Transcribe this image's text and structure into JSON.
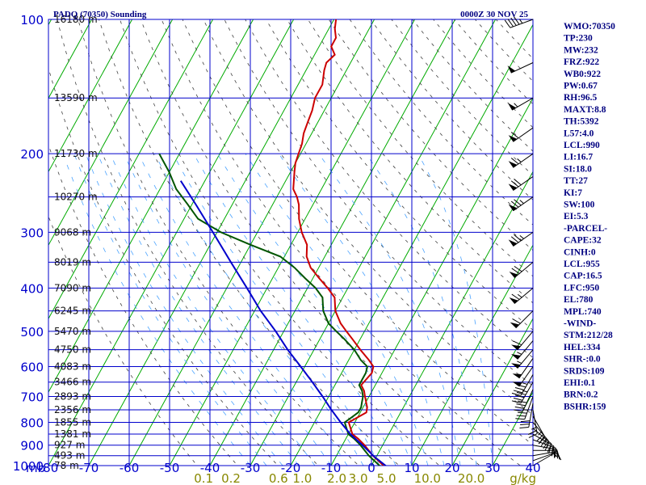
{
  "header": {
    "title": "PADQ (70350) Sounding",
    "time": "0000Z 30 NOV 25"
  },
  "colors": {
    "background": "#ffffff",
    "grid": "#0000cc",
    "isotherm": "#00aa00",
    "dry_adiabat": "#404040",
    "moist_adiabat": "#4aa3ff",
    "mixing_ratio_label": "#888800",
    "temperature": "#cc0000",
    "dewpoint": "#005500",
    "parcel": "#0000cc",
    "wind_barb": "#000000",
    "text": "#000080"
  },
  "chart_data": {
    "type": "line",
    "subtype": "skew-T log-P sounding",
    "title": "PADQ (70350) Sounding",
    "valid_time": "0000Z 30 NOV 25",
    "pressure_unit_label": "mb",
    "pressure_levels": [
      100,
      200,
      300,
      400,
      500,
      600,
      700,
      800,
      900,
      1000
    ],
    "temperature_ticks": [
      -80,
      -70,
      -60,
      -50,
      -40,
      -30,
      -20,
      -10,
      0,
      10,
      20,
      30,
      40
    ],
    "temperature_tick_labels": [
      "-80",
      "-70",
      "-60",
      "-50",
      "-40",
      "-30",
      "-20",
      "-10",
      "0",
      "10",
      "20",
      "30",
      "40"
    ],
    "mixing_ratio_labels": [
      "0.1",
      "0.2",
      "0.6",
      "1.0",
      "2.0",
      "3.0",
      "5.0",
      "10.0",
      "20.0",
      "g/kg"
    ],
    "mixing_ratio_values": [
      0.1,
      0.2,
      0.6,
      1.0,
      2.0,
      3.0,
      5.0,
      10.0,
      20.0
    ],
    "height_labels": [
      {
        "p": 100,
        "label": "16180 m"
      },
      {
        "p": 150,
        "label": "13590 m"
      },
      {
        "p": 200,
        "label": "11730 m"
      },
      {
        "p": 250,
        "label": "10270 m"
      },
      {
        "p": 300,
        "label": "9068 m"
      },
      {
        "p": 350,
        "label": "8019 m"
      },
      {
        "p": 400,
        "label": "7090 m"
      },
      {
        "p": 450,
        "label": "6245 m"
      },
      {
        "p": 500,
        "label": "5470 m"
      },
      {
        "p": 550,
        "label": "4750 m"
      },
      {
        "p": 600,
        "label": "4083 m"
      },
      {
        "p": 650,
        "label": "3466 m"
      },
      {
        "p": 700,
        "label": "2893 m"
      },
      {
        "p": 750,
        "label": "2356 m"
      },
      {
        "p": 800,
        "label": "1855 m"
      },
      {
        "p": 850,
        "label": "1381 m"
      },
      {
        "p": 900,
        "label": "927 m"
      },
      {
        "p": 950,
        "label": "493 m"
      },
      {
        "p": 1000,
        "label": "78 m"
      }
    ],
    "series": [
      {
        "name": "Temperature",
        "points": [
          {
            "p": 1012,
            "t": 4.5
          },
          {
            "p": 1000,
            "t": 3.0
          },
          {
            "p": 950,
            "t": -1.0
          },
          {
            "p": 900,
            "t": -4.5
          },
          {
            "p": 870,
            "t": -7.0
          },
          {
            "p": 850,
            "t": -9.0
          },
          {
            "p": 820,
            "t": -10.5
          },
          {
            "p": 800,
            "t": -11.5
          },
          {
            "p": 780,
            "t": -10.0
          },
          {
            "p": 760,
            "t": -8.5
          },
          {
            "p": 740,
            "t": -9.0
          },
          {
            "p": 720,
            "t": -10.0
          },
          {
            "p": 700,
            "t": -11.0
          },
          {
            "p": 680,
            "t": -12.0
          },
          {
            "p": 660,
            "t": -13.5
          },
          {
            "p": 640,
            "t": -13.0
          },
          {
            "p": 620,
            "t": -12.5
          },
          {
            "p": 600,
            "t": -13.0
          },
          {
            "p": 580,
            "t": -15.0
          },
          {
            "p": 550,
            "t": -18.5
          },
          {
            "p": 520,
            "t": -22.0
          },
          {
            "p": 500,
            "t": -24.5
          },
          {
            "p": 480,
            "t": -27.0
          },
          {
            "p": 450,
            "t": -30.0
          },
          {
            "p": 420,
            "t": -32.0
          },
          {
            "p": 400,
            "t": -35.0
          },
          {
            "p": 380,
            "t": -38.5
          },
          {
            "p": 360,
            "t": -42.0
          },
          {
            "p": 340,
            "t": -44.5
          },
          {
            "p": 320,
            "t": -46.0
          },
          {
            "p": 300,
            "t": -49.0
          },
          {
            "p": 280,
            "t": -51.5
          },
          {
            "p": 260,
            "t": -53.5
          },
          {
            "p": 250,
            "t": -55.0
          },
          {
            "p": 240,
            "t": -57.0
          },
          {
            "p": 220,
            "t": -59.0
          },
          {
            "p": 210,
            "t": -60.0
          },
          {
            "p": 200,
            "t": -60.5
          },
          {
            "p": 190,
            "t": -61.0
          },
          {
            "p": 180,
            "t": -62.0
          },
          {
            "p": 170,
            "t": -62.5
          },
          {
            "p": 160,
            "t": -63.0
          },
          {
            "p": 150,
            "t": -64.0
          },
          {
            "p": 140,
            "t": -64.0
          },
          {
            "p": 130,
            "t": -65.5
          },
          {
            "p": 125,
            "t": -66.0
          },
          {
            "p": 120,
            "t": -65.0
          },
          {
            "p": 115,
            "t": -67.0
          },
          {
            "p": 110,
            "t": -67.0
          },
          {
            "p": 105,
            "t": -68.5
          },
          {
            "p": 100,
            "t": -69.5
          }
        ]
      },
      {
        "name": "Dewpoint",
        "points": [
          {
            "p": 1012,
            "t": 3.5
          },
          {
            "p": 1000,
            "t": 2.0
          },
          {
            "p": 950,
            "t": -2.0
          },
          {
            "p": 900,
            "t": -5.5
          },
          {
            "p": 870,
            "t": -8.0
          },
          {
            "p": 850,
            "t": -10.0
          },
          {
            "p": 820,
            "t": -11.5
          },
          {
            "p": 800,
            "t": -12.5
          },
          {
            "p": 780,
            "t": -11.5
          },
          {
            "p": 760,
            "t": -10.5
          },
          {
            "p": 740,
            "t": -10.5
          },
          {
            "p": 720,
            "t": -11.0
          },
          {
            "p": 700,
            "t": -11.5
          },
          {
            "p": 680,
            "t": -12.5
          },
          {
            "p": 660,
            "t": -14.0
          },
          {
            "p": 640,
            "t": -14.0
          },
          {
            "p": 620,
            "t": -14.0
          },
          {
            "p": 600,
            "t": -14.5
          },
          {
            "p": 580,
            "t": -17.0
          },
          {
            "p": 550,
            "t": -20.0
          },
          {
            "p": 520,
            "t": -24.0
          },
          {
            "p": 500,
            "t": -27.0
          },
          {
            "p": 480,
            "t": -30.0
          },
          {
            "p": 450,
            "t": -33.0
          },
          {
            "p": 420,
            "t": -35.0
          },
          {
            "p": 400,
            "t": -38.0
          },
          {
            "p": 380,
            "t": -42.0
          },
          {
            "p": 360,
            "t": -46.0
          },
          {
            "p": 340,
            "t": -51.0
          },
          {
            "p": 320,
            "t": -60.0
          },
          {
            "p": 300,
            "t": -69.0
          },
          {
            "p": 280,
            "t": -76.5
          },
          {
            "p": 260,
            "t": -81.0
          },
          {
            "p": 240,
            "t": -86.0
          },
          {
            "p": 220,
            "t": -90.0
          },
          {
            "p": 200,
            "t": -95.0
          }
        ]
      },
      {
        "name": "Parcel",
        "points": [
          {
            "p": 1012,
            "t": 4.5
          },
          {
            "p": 1000,
            "t": 3.5
          },
          {
            "p": 955,
            "t": -0.5
          },
          {
            "p": 900,
            "t": -5.0
          },
          {
            "p": 850,
            "t": -9.5
          },
          {
            "p": 800,
            "t": -13.5
          },
          {
            "p": 750,
            "t": -17.5
          },
          {
            "p": 700,
            "t": -21.5
          },
          {
            "p": 650,
            "t": -26.0
          },
          {
            "p": 600,
            "t": -31.0
          },
          {
            "p": 550,
            "t": -36.5
          },
          {
            "p": 500,
            "t": -42.0
          },
          {
            "p": 450,
            "t": -48.5
          },
          {
            "p": 400,
            "t": -55.0
          },
          {
            "p": 350,
            "t": -62.5
          },
          {
            "p": 300,
            "t": -71.0
          },
          {
            "p": 260,
            "t": -79.0
          },
          {
            "p": 230,
            "t": -86.0
          }
        ]
      }
    ],
    "wind_barbs": [
      {
        "p": 1000,
        "dir": 60,
        "spd": 5
      },
      {
        "p": 975,
        "dir": 70,
        "spd": 10
      },
      {
        "p": 950,
        "dir": 80,
        "spd": 15
      },
      {
        "p": 925,
        "dir": 90,
        "spd": 15
      },
      {
        "p": 900,
        "dir": 100,
        "spd": 20
      },
      {
        "p": 875,
        "dir": 110,
        "spd": 20
      },
      {
        "p": 850,
        "dir": 120,
        "spd": 25
      },
      {
        "p": 825,
        "dir": 130,
        "spd": 25
      },
      {
        "p": 800,
        "dir": 140,
        "spd": 30
      },
      {
        "p": 775,
        "dir": 150,
        "spd": 25
      },
      {
        "p": 750,
        "dir": 170,
        "spd": 25
      },
      {
        "p": 725,
        "dir": 190,
        "spd": 30
      },
      {
        "p": 700,
        "dir": 200,
        "spd": 35
      },
      {
        "p": 675,
        "dir": 205,
        "spd": 40
      },
      {
        "p": 650,
        "dir": 210,
        "spd": 45
      },
      {
        "p": 625,
        "dir": 210,
        "spd": 45
      },
      {
        "p": 600,
        "dir": 215,
        "spd": 50
      },
      {
        "p": 575,
        "dir": 215,
        "spd": 50
      },
      {
        "p": 550,
        "dir": 220,
        "spd": 55
      },
      {
        "p": 525,
        "dir": 220,
        "spd": 55
      },
      {
        "p": 500,
        "dir": 220,
        "spd": 60
      },
      {
        "p": 450,
        "dir": 225,
        "spd": 60
      },
      {
        "p": 400,
        "dir": 230,
        "spd": 65
      },
      {
        "p": 350,
        "dir": 230,
        "spd": 70
      },
      {
        "p": 300,
        "dir": 235,
        "spd": 75
      },
      {
        "p": 250,
        "dir": 235,
        "spd": 75
      },
      {
        "p": 225,
        "dir": 235,
        "spd": 70
      },
      {
        "p": 200,
        "dir": 235,
        "spd": 65
      },
      {
        "p": 175,
        "dir": 235,
        "spd": 60
      },
      {
        "p": 150,
        "dir": 240,
        "spd": 55
      },
      {
        "p": 125,
        "dir": 245,
        "spd": 50
      },
      {
        "p": 100,
        "dir": 250,
        "spd": 45
      }
    ],
    "indices": [
      "WMO:70350",
      "TP:230",
      "MW:232",
      "FRZ:922",
      "WB0:922",
      "PW:0.67",
      "RH:96.5",
      "MAXT:8.8",
      "TH:5392",
      "L57:4.0",
      "LCL:990",
      "LI:16.7",
      "SI:18.0",
      "TT:27",
      "KI:7",
      "SW:100",
      "EI:5.3",
      "-PARCEL-",
      "CAPE:32",
      "CINH:0",
      "LCL:955",
      "CAP:16.5",
      "LFC:950",
      "EL:780",
      "MPL:740",
      "-WIND-",
      "STM:212/28",
      "HEL:334",
      "SHR-:0.0",
      "SRDS:109",
      "EHI:0.1",
      "BRN:0.2",
      "BSHR:159"
    ]
  }
}
